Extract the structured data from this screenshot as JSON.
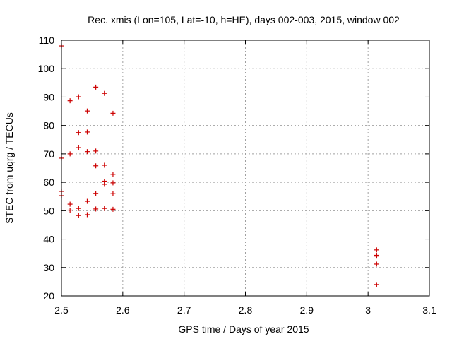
{
  "chart_data": {
    "type": "scatter",
    "title": "Rec. xmis (Lon=105, Lat=-10, h=HE), days 002-003, 2015, window 002",
    "xlabel": "GPS time / Days of year 2015",
    "ylabel": "STEC from uqrg / TECUs",
    "xlim": [
      2.5,
      3.1
    ],
    "ylim": [
      20,
      110
    ],
    "xticks": [
      2.5,
      2.6,
      2.7,
      2.8,
      2.9,
      3.0,
      3.1
    ],
    "xtick_labels": [
      "2.5",
      "2.6",
      "2.7",
      "2.8",
      "2.9",
      "3",
      "3.1"
    ],
    "yticks": [
      20,
      30,
      40,
      50,
      60,
      70,
      80,
      90,
      100,
      110
    ],
    "ytick_labels": [
      "20",
      "30",
      "40",
      "50",
      "60",
      "70",
      "80",
      "90",
      "100",
      "110"
    ],
    "grid": true,
    "marker": "+",
    "color": "#cc0000",
    "points": [
      {
        "x": 2.5,
        "y": 108.0
      },
      {
        "x": 2.5,
        "y": 68.5
      },
      {
        "x": 2.5,
        "y": 56.8
      },
      {
        "x": 2.5,
        "y": 55.3
      },
      {
        "x": 2.514,
        "y": 88.7
      },
      {
        "x": 2.514,
        "y": 70.0
      },
      {
        "x": 2.514,
        "y": 52.3
      },
      {
        "x": 2.514,
        "y": 50.2
      },
      {
        "x": 2.528,
        "y": 90.1
      },
      {
        "x": 2.528,
        "y": 77.5
      },
      {
        "x": 2.528,
        "y": 72.2
      },
      {
        "x": 2.528,
        "y": 50.8
      },
      {
        "x": 2.528,
        "y": 48.3
      },
      {
        "x": 2.542,
        "y": 85.1
      },
      {
        "x": 2.542,
        "y": 77.7
      },
      {
        "x": 2.542,
        "y": 70.8
      },
      {
        "x": 2.542,
        "y": 53.3
      },
      {
        "x": 2.542,
        "y": 48.6
      },
      {
        "x": 2.556,
        "y": 93.5
      },
      {
        "x": 2.556,
        "y": 71.0
      },
      {
        "x": 2.556,
        "y": 65.8
      },
      {
        "x": 2.556,
        "y": 56.1
      },
      {
        "x": 2.556,
        "y": 50.6
      },
      {
        "x": 2.57,
        "y": 91.3
      },
      {
        "x": 2.57,
        "y": 66.0
      },
      {
        "x": 2.57,
        "y": 60.4
      },
      {
        "x": 2.57,
        "y": 59.3
      },
      {
        "x": 2.57,
        "y": 50.8
      },
      {
        "x": 2.584,
        "y": 84.3
      },
      {
        "x": 2.584,
        "y": 62.8
      },
      {
        "x": 2.584,
        "y": 59.8
      },
      {
        "x": 2.584,
        "y": 56.0
      },
      {
        "x": 2.584,
        "y": 50.5
      },
      {
        "x": 3.014,
        "y": 36.2
      },
      {
        "x": 3.014,
        "y": 34.3
      },
      {
        "x": 3.014,
        "y": 34.0
      },
      {
        "x": 3.014,
        "y": 31.2
      },
      {
        "x": 3.014,
        "y": 24.0
      }
    ]
  }
}
